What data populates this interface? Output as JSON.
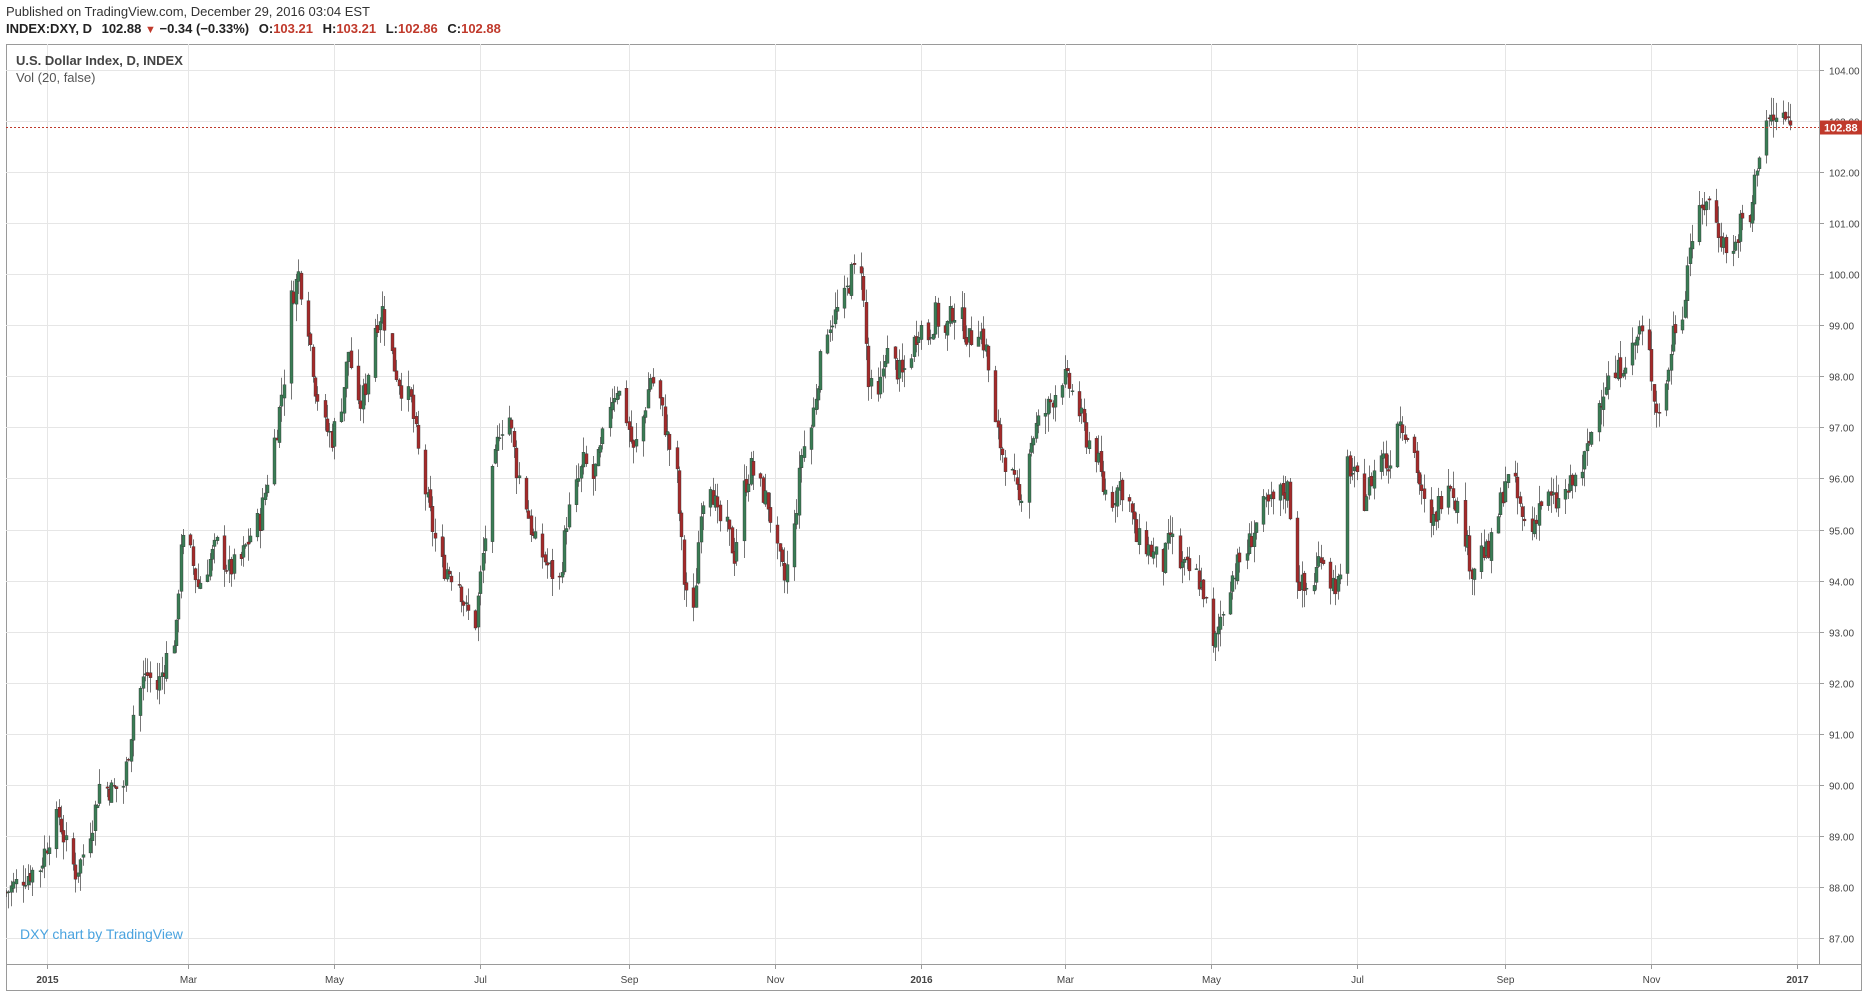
{
  "header": {
    "published": "Published on TradingView.com, December 29, 2016 03:04 EST",
    "symbol": "INDEX:DXY, D",
    "last": "102.88",
    "change": "−0.34 (−0.33%)",
    "open_label": "O:",
    "open": "103.21",
    "high_label": "H:",
    "high": "103.21",
    "low_label": "L:",
    "low": "102.86",
    "close_label": "C:",
    "close": "102.88",
    "down_arrow_icon": "triangle-down-icon"
  },
  "legend": {
    "title": "U.S. Dollar Index, D, INDEX",
    "indicator": "Vol (20, false)"
  },
  "watermark": "DXY chart by TradingView",
  "price_badge": "102.88",
  "colors": {
    "up": "#3a7d55",
    "down": "#a52a2a",
    "grid": "#e6e6e6",
    "price_line": "#c0392b",
    "watermark": "#4aa3df"
  },
  "chart_data": {
    "type": "candlestick",
    "title": "U.S. Dollar Index, D, INDEX",
    "ylim": [
      86.5,
      104.5
    ],
    "yticks": [
      "87.00",
      "88.00",
      "89.00",
      "90.00",
      "91.00",
      "92.00",
      "93.00",
      "94.00",
      "95.00",
      "96.00",
      "97.00",
      "98.00",
      "99.00",
      "100.00",
      "101.00",
      "102.00",
      "103.00",
      "104.00"
    ],
    "x_range": [
      "2014-12-15",
      "2017-01-10"
    ],
    "xticks": [
      {
        "date": "2015-01-01",
        "label": "2015",
        "bold": true
      },
      {
        "date": "2015-03-01",
        "label": "Mar"
      },
      {
        "date": "2015-05-01",
        "label": "May"
      },
      {
        "date": "2015-07-01",
        "label": "Jul"
      },
      {
        "date": "2015-09-01",
        "label": "Sep"
      },
      {
        "date": "2015-11-01",
        "label": "Nov"
      },
      {
        "date": "2016-01-01",
        "label": "2016",
        "bold": true
      },
      {
        "date": "2016-03-01",
        "label": "Mar"
      },
      {
        "date": "2016-05-01",
        "label": "May"
      },
      {
        "date": "2016-07-01",
        "label": "Jul"
      },
      {
        "date": "2016-09-01",
        "label": "Sep"
      },
      {
        "date": "2016-11-01",
        "label": "Nov"
      },
      {
        "date": "2017-01-01",
        "label": "2017",
        "bold": true
      }
    ],
    "last_price": 102.88,
    "closes": [
      [
        "2014-12-15",
        87.9
      ],
      [
        "2014-12-22",
        88.2
      ],
      [
        "2014-12-29",
        88.4
      ],
      [
        "2015-01-02",
        89.0
      ],
      [
        "2015-01-06",
        89.4
      ],
      [
        "2015-01-09",
        88.8
      ],
      [
        "2015-01-13",
        88.3
      ],
      [
        "2015-01-15",
        88.5
      ],
      [
        "2015-01-20",
        89.3
      ],
      [
        "2015-01-23",
        90.0
      ],
      [
        "2015-01-28",
        89.9
      ],
      [
        "2015-02-02",
        90.0
      ],
      [
        "2015-02-06",
        91.4
      ],
      [
        "2015-02-11",
        92.2
      ],
      [
        "2015-02-16",
        91.9
      ],
      [
        "2015-02-20",
        92.5
      ],
      [
        "2015-02-24",
        93.0
      ],
      [
        "2015-02-26",
        94.8
      ],
      [
        "2015-03-02",
        94.5
      ],
      [
        "2015-03-05",
        93.9
      ],
      [
        "2015-03-10",
        94.4
      ],
      [
        "2015-03-13",
        94.7
      ],
      [
        "2015-03-18",
        94.2
      ],
      [
        "2015-03-23",
        94.4
      ],
      [
        "2015-03-27",
        94.9
      ],
      [
        "2015-03-31",
        95.2
      ],
      [
        "2015-04-03",
        96.0
      ],
      [
        "2015-04-07",
        97.0
      ],
      [
        "2015-04-10",
        98.0
      ],
      [
        "2015-04-13",
        99.5
      ],
      [
        "2015-04-16",
        100.0
      ],
      [
        "2015-04-20",
        99.0
      ],
      [
        "2015-04-23",
        97.8
      ],
      [
        "2015-04-27",
        97.0
      ],
      [
        "2015-04-30",
        96.8
      ],
      [
        "2015-05-04",
        97.5
      ],
      [
        "2015-05-07",
        98.5
      ],
      [
        "2015-05-11",
        97.3
      ],
      [
        "2015-05-14",
        97.8
      ],
      [
        "2015-05-18",
        99.0
      ],
      [
        "2015-05-21",
        99.3
      ],
      [
        "2015-05-26",
        98.2
      ],
      [
        "2015-05-29",
        97.8
      ],
      [
        "2015-06-02",
        97.5
      ],
      [
        "2015-06-05",
        96.5
      ],
      [
        "2015-06-09",
        95.5
      ],
      [
        "2015-06-12",
        94.8
      ],
      [
        "2015-06-15",
        94.3
      ],
      [
        "2015-06-18",
        94.2
      ],
      [
        "2015-06-22",
        94.0
      ],
      [
        "2015-06-25",
        93.4
      ],
      [
        "2015-06-29",
        93.2
      ],
      [
        "2015-07-02",
        94.5
      ],
      [
        "2015-07-06",
        96.0
      ],
      [
        "2015-07-09",
        97.0
      ],
      [
        "2015-07-13",
        97.2
      ],
      [
        "2015-07-16",
        96.2
      ],
      [
        "2015-07-20",
        95.5
      ],
      [
        "2015-07-23",
        94.8
      ],
      [
        "2015-07-27",
        94.5
      ],
      [
        "2015-07-30",
        94.2
      ],
      [
        "2015-08-03",
        94.0
      ],
      [
        "2015-08-06",
        95.2
      ],
      [
        "2015-08-10",
        95.8
      ],
      [
        "2015-08-13",
        96.3
      ],
      [
        "2015-08-17",
        96.0
      ],
      [
        "2015-08-20",
        96.5
      ],
      [
        "2015-08-24",
        97.5
      ],
      [
        "2015-08-27",
        97.8
      ],
      [
        "2015-08-31",
        97.2
      ],
      [
        "2015-09-03",
        96.5
      ],
      [
        "2015-09-07",
        97.2
      ],
      [
        "2015-09-10",
        98.0
      ],
      [
        "2015-09-14",
        97.5
      ],
      [
        "2015-09-17",
        96.8
      ],
      [
        "2015-09-21",
        96.0
      ],
      [
        "2015-09-24",
        94.0
      ],
      [
        "2015-09-28",
        93.3
      ],
      [
        "2015-10-01",
        95.5
      ],
      [
        "2015-10-05",
        96.0
      ],
      [
        "2015-10-08",
        95.2
      ],
      [
        "2015-10-12",
        95.0
      ],
      [
        "2015-10-15",
        94.5
      ],
      [
        "2015-10-19",
        95.8
      ],
      [
        "2015-10-22",
        96.2
      ],
      [
        "2015-10-26",
        95.8
      ],
      [
        "2015-10-29",
        95.5
      ],
      [
        "2015-11-02",
        94.5
      ],
      [
        "2015-11-05",
        94.0
      ],
      [
        "2015-11-09",
        95.0
      ],
      [
        "2015-11-12",
        96.5
      ],
      [
        "2015-11-16",
        97.0
      ],
      [
        "2015-11-19",
        98.0
      ],
      [
        "2015-11-23",
        99.0
      ],
      [
        "2015-11-26",
        99.2
      ],
      [
        "2015-11-30",
        99.5
      ],
      [
        "2015-12-03",
        100.0
      ],
      [
        "2015-12-07",
        100.2
      ],
      [
        "2015-12-10",
        97.8
      ],
      [
        "2015-12-14",
        97.5
      ],
      [
        "2015-12-17",
        98.5
      ],
      [
        "2015-12-21",
        98.2
      ],
      [
        "2015-12-24",
        98.0
      ],
      [
        "2015-12-28",
        98.5
      ],
      [
        "2015-12-31",
        99.0
      ],
      [
        "2016-01-04",
        98.8
      ],
      [
        "2016-01-07",
        99.2
      ],
      [
        "2016-01-11",
        98.8
      ],
      [
        "2016-01-14",
        99.3
      ],
      [
        "2016-01-18",
        99.1
      ],
      [
        "2016-01-21",
        98.7
      ],
      [
        "2016-01-25",
        99.0
      ],
      [
        "2016-01-28",
        98.5
      ],
      [
        "2016-02-01",
        97.0
      ],
      [
        "2016-02-04",
        96.5
      ],
      [
        "2016-02-08",
        96.0
      ],
      [
        "2016-02-11",
        95.5
      ],
      [
        "2016-02-15",
        96.6
      ],
      [
        "2016-02-18",
        97.0
      ],
      [
        "2016-02-22",
        97.3
      ],
      [
        "2016-02-25",
        97.6
      ],
      [
        "2016-02-29",
        98.0
      ],
      [
        "2016-03-03",
        97.8
      ],
      [
        "2016-03-07",
        97.3
      ],
      [
        "2016-03-10",
        96.8
      ],
      [
        "2016-03-14",
        96.5
      ],
      [
        "2016-03-17",
        95.8
      ],
      [
        "2016-03-21",
        95.6
      ],
      [
        "2016-03-24",
        95.9
      ],
      [
        "2016-03-28",
        95.5
      ],
      [
        "2016-03-31",
        94.8
      ],
      [
        "2016-04-04",
        94.7
      ],
      [
        "2016-04-07",
        94.5
      ],
      [
        "2016-04-11",
        94.3
      ],
      [
        "2016-04-14",
        94.9
      ],
      [
        "2016-04-18",
        94.3
      ],
      [
        "2016-04-21",
        94.2
      ],
      [
        "2016-04-25",
        94.1
      ],
      [
        "2016-04-28",
        93.8
      ],
      [
        "2016-05-02",
        92.6
      ],
      [
        "2016-05-05",
        93.3
      ],
      [
        "2016-05-09",
        94.0
      ],
      [
        "2016-05-12",
        94.3
      ],
      [
        "2016-05-16",
        94.6
      ],
      [
        "2016-05-19",
        95.0
      ],
      [
        "2016-05-23",
        95.4
      ],
      [
        "2016-05-26",
        95.5
      ],
      [
        "2016-05-30",
        95.7
      ],
      [
        "2016-06-02",
        95.8
      ],
      [
        "2016-06-06",
        94.1
      ],
      [
        "2016-06-09",
        93.8
      ],
      [
        "2016-06-13",
        94.0
      ],
      [
        "2016-06-16",
        94.6
      ],
      [
        "2016-06-20",
        94.0
      ],
      [
        "2016-06-24",
        93.9
      ],
      [
        "2016-06-27",
        96.3
      ],
      [
        "2016-06-30",
        96.0
      ],
      [
        "2016-07-04",
        95.6
      ],
      [
        "2016-07-07",
        96.0
      ],
      [
        "2016-07-11",
        96.5
      ],
      [
        "2016-07-14",
        96.2
      ],
      [
        "2016-07-18",
        97.2
      ],
      [
        "2016-07-21",
        97.0
      ],
      [
        "2016-07-25",
        96.5
      ],
      [
        "2016-07-28",
        95.6
      ],
      [
        "2016-08-01",
        95.0
      ],
      [
        "2016-08-04",
        95.5
      ],
      [
        "2016-08-08",
        96.1
      ],
      [
        "2016-08-11",
        95.6
      ],
      [
        "2016-08-15",
        94.9
      ],
      [
        "2016-08-18",
        94.2
      ],
      [
        "2016-08-22",
        94.6
      ],
      [
        "2016-08-25",
        94.5
      ],
      [
        "2016-08-29",
        95.3
      ],
      [
        "2016-09-01",
        96.0
      ],
      [
        "2016-09-05",
        95.8
      ],
      [
        "2016-09-08",
        95.2
      ],
      [
        "2016-09-12",
        95.0
      ],
      [
        "2016-09-15",
        95.5
      ],
      [
        "2016-09-19",
        95.6
      ],
      [
        "2016-09-22",
        95.5
      ],
      [
        "2016-09-26",
        95.7
      ],
      [
        "2016-09-29",
        95.9
      ],
      [
        "2016-10-03",
        96.2
      ],
      [
        "2016-10-06",
        96.7
      ],
      [
        "2016-10-10",
        97.5
      ],
      [
        "2016-10-13",
        97.9
      ],
      [
        "2016-10-17",
        98.0
      ],
      [
        "2016-10-20",
        98.3
      ],
      [
        "2016-10-24",
        98.5
      ],
      [
        "2016-10-27",
        98.9
      ],
      [
        "2016-10-31",
        98.4
      ],
      [
        "2016-11-03",
        97.3
      ],
      [
        "2016-11-07",
        97.8
      ],
      [
        "2016-11-10",
        98.9
      ],
      [
        "2016-11-14",
        99.3
      ],
      [
        "2016-11-17",
        100.6
      ],
      [
        "2016-11-21",
        101.1
      ],
      [
        "2016-11-24",
        101.5
      ],
      [
        "2016-11-28",
        101.0
      ],
      [
        "2016-12-01",
        100.6
      ],
      [
        "2016-12-05",
        100.4
      ],
      [
        "2016-12-08",
        101.0
      ],
      [
        "2016-12-12",
        101.0
      ],
      [
        "2016-12-15",
        102.2
      ],
      [
        "2016-12-19",
        103.0
      ],
      [
        "2016-12-22",
        103.0
      ],
      [
        "2016-12-26",
        103.1
      ],
      [
        "2016-12-29",
        102.88
      ]
    ]
  }
}
